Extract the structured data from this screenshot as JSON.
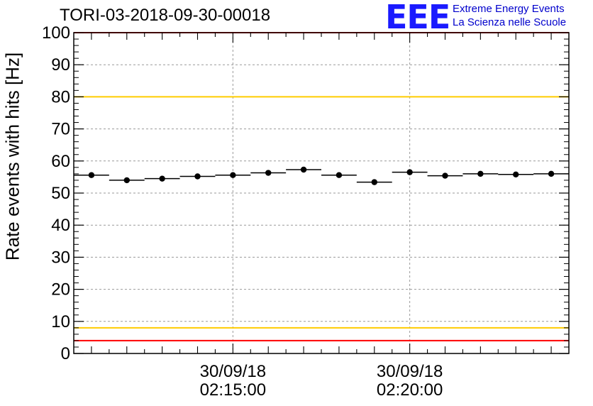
{
  "chart_data": {
    "type": "scatter",
    "title": "TORI-03-2018-09-30-00018",
    "ylabel": "Rate events with hits [Hz]",
    "xlabel": "",
    "ylim": [
      0,
      100
    ],
    "yticks": [
      0,
      10,
      20,
      30,
      40,
      50,
      60,
      70,
      80,
      90,
      100
    ],
    "xlim_minutes": [
      0,
      14
    ],
    "x_tick_labels": [
      {
        "at_minute": 4.5,
        "date": "30/09/18",
        "time": "02:15:00"
      },
      {
        "at_minute": 9.5,
        "date": "30/09/18",
        "time": "02:20:00"
      }
    ],
    "grid": true,
    "points_minutes": [
      0.5,
      1.5,
      2.5,
      3.5,
      4.5,
      5.5,
      6.5,
      7.5,
      8.5,
      9.5,
      10.5,
      11.5,
      12.5,
      13.5
    ],
    "values": [
      55.6,
      54.0,
      54.5,
      55.2,
      55.6,
      56.3,
      57.3,
      55.6,
      53.4,
      56.5,
      55.4,
      56.0,
      55.8,
      56.0
    ],
    "bin_width_minutes": 1,
    "reference_lines": [
      {
        "y": 100,
        "color": "#ff0000"
      },
      {
        "y": 80,
        "color": "#ffcc00"
      },
      {
        "y": 8,
        "color": "#ffcc00"
      },
      {
        "y": 4,
        "color": "#ff0000"
      }
    ]
  },
  "logo": {
    "mark": "EEE",
    "line1": "Extreme Energy Events",
    "line2": "La Scienza nelle Scuole"
  }
}
